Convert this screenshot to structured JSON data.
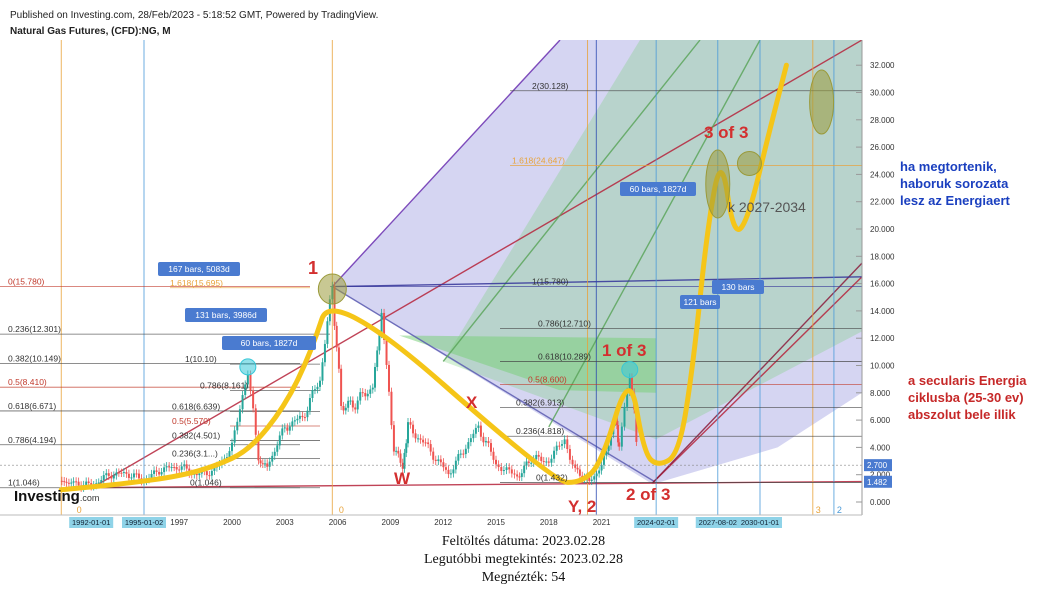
{
  "header": {
    "published": "Published on Investing.com, 28/Feb/2023 - 5:18:52 GMT, Powered by TradingView.",
    "symbol": "Natural Gas Futures, (CFD):NG, M"
  },
  "logo": {
    "text": "Investing",
    "suffix": ".com"
  },
  "footer": {
    "upload_date": "Feltöltés dátuma: 2023.02.28",
    "last_viewed": "Legutóbbi megtekintés: 2023.02.28",
    "views": "Megnézték: 54"
  },
  "notes": {
    "war": [
      "ha megtortenik,",
      "haboruk sorozata",
      "lesz az Energiaert"
    ],
    "secular": [
      "a secularis Energia",
      "ciklusba (25-30 ev)",
      "abszolut bele illik"
    ]
  },
  "colors": {
    "price_bull": "#26a69a",
    "price_bear": "#ef5350",
    "projection": "#f5c518",
    "wave_label": "#d32f2f",
    "note_blue": "#1a3fbf",
    "note_red": "#c62828",
    "pitchfork_blue": "#7b7bd6",
    "pitchfork_green": "#7ccf7c",
    "axis_badge": "#4a7bd0",
    "date_badge": "#8fd3e8"
  },
  "chart_data": {
    "type": "line",
    "title": "Natural Gas Futures, (CFD):NG, M",
    "y_axis": {
      "scale": "linear",
      "range": [
        -0.8,
        33.0
      ],
      "ticks": [
        "32.000",
        "30.000",
        "28.000",
        "26.000",
        "24.000",
        "22.000",
        "20.000",
        "18.000",
        "16.000",
        "14.000",
        "12.000",
        "10.000",
        "8.000",
        "6.000",
        "4.000",
        "2.000",
        "0.000"
      ],
      "tick_values": [
        32,
        30,
        28,
        26,
        24,
        22,
        20,
        18,
        16,
        14,
        12,
        10,
        8,
        6,
        4,
        2,
        0
      ],
      "badges": [
        {
          "value": 2.7,
          "text": "2.700"
        },
        {
          "value": 1.482,
          "text": "1.482"
        }
      ]
    },
    "x_axis": {
      "ticks": [
        "1997",
        "2000",
        "2003",
        "2006",
        "2009",
        "2012",
        "2015",
        "2018",
        "2021"
      ],
      "tick_values": [
        1997,
        2000,
        2003,
        2006,
        2009,
        2012,
        2015,
        2018,
        2021
      ],
      "date_badges": [
        {
          "x": 1992.0,
          "text": "1992-01-01"
        },
        {
          "x": 1995.0,
          "text": "1995-01-02"
        },
        {
          "x": 2024.1,
          "text": "2024-02-01"
        },
        {
          "x": 2027.6,
          "text": "2027-08-02"
        },
        {
          "x": 2030.0,
          "text": "2030-01-01"
        }
      ]
    },
    "series": [
      {
        "type": "price",
        "points": [
          [
            1990.2,
            1.5
          ],
          [
            1991.0,
            1.4
          ],
          [
            1992.0,
            1.2
          ],
          [
            1993.0,
            2.0
          ],
          [
            1994.0,
            2.1
          ],
          [
            1995.0,
            1.6
          ],
          [
            1996.0,
            2.4
          ],
          [
            1997.0,
            2.6
          ],
          [
            1998.0,
            2.0
          ],
          [
            1999.0,
            2.3
          ],
          [
            2000.0,
            4.0
          ],
          [
            2000.9,
            9.8
          ],
          [
            2001.5,
            3.0
          ],
          [
            2002.0,
            2.6
          ],
          [
            2003.0,
            5.5
          ],
          [
            2004.0,
            6.2
          ],
          [
            2005.0,
            9.0
          ],
          [
            2005.7,
            15.78
          ],
          [
            2006.2,
            7.0
          ],
          [
            2007.0,
            7.2
          ],
          [
            2008.0,
            8.5
          ],
          [
            2008.5,
            13.7
          ],
          [
            2009.2,
            4.0
          ],
          [
            2009.7,
            2.6
          ],
          [
            2010.0,
            5.5
          ],
          [
            2011.0,
            4.2
          ],
          [
            2012.3,
            2.0
          ],
          [
            2013.0,
            3.5
          ],
          [
            2014.0,
            5.5
          ],
          [
            2015.0,
            2.8
          ],
          [
            2016.2,
            1.8
          ],
          [
            2017.0,
            3.2
          ],
          [
            2018.0,
            3.0
          ],
          [
            2018.9,
            4.6
          ],
          [
            2019.5,
            2.3
          ],
          [
            2020.3,
            1.5
          ],
          [
            2021.0,
            2.6
          ],
          [
            2021.8,
            6.2
          ],
          [
            2022.0,
            4.0
          ],
          [
            2022.6,
            9.7
          ],
          [
            2023.1,
            2.7
          ]
        ]
      },
      {
        "name": "",
        "type": "projection",
        "points": [
          [
            1990.3,
            0.9
          ],
          [
            1994.0,
            1.35
          ],
          [
            1997.0,
            1.9
          ],
          [
            1999.0,
            2.6
          ],
          [
            2001.0,
            3.8
          ],
          [
            2003.0,
            7.0
          ],
          [
            2004.5,
            11.0
          ],
          [
            2005.7,
            15.78
          ],
          [
            2018.3,
            1.482
          ],
          [
            2019.8,
            1.4
          ],
          [
            2021.0,
            2.8
          ],
          [
            2022.6,
            9.8
          ],
          [
            2023.4,
            3.6
          ],
          [
            2024.2,
            2.6
          ],
          [
            2025.4,
            3.5
          ],
          [
            2026.2,
            10.0
          ],
          [
            2027.0,
            20.0
          ],
          [
            2027.8,
            25.6
          ],
          [
            2028.5,
            19.5
          ],
          [
            2029.3,
            20.6
          ],
          [
            2030.5,
            27.0
          ],
          [
            2031.5,
            32.0
          ]
        ]
      }
    ],
    "horizontal_levels": [
      {
        "label": "0(15.780)",
        "value": 15.78
      },
      {
        "label": "1.618(15.695)",
        "value": 15.695
      },
      {
        "label": "0.236(12.301)",
        "value": 12.301
      },
      {
        "label": "0.382(10.149)",
        "value": 10.149
      },
      {
        "label": "0.5(8.410)",
        "value": 8.41
      },
      {
        "label": "0.618(6.671)",
        "value": 6.671
      },
      {
        "label": "0.786(4.194)",
        "value": 4.194
      },
      {
        "label": "1(1.046)",
        "value": 1.046
      },
      {
        "label": "1(10.10)",
        "value": 10.1
      },
      {
        "label": "0.786(8.161)",
        "value": 8.161
      },
      {
        "label": "0.618(6.639)",
        "value": 6.639
      },
      {
        "label": "0.5(5.570)",
        "value": 5.57
      },
      {
        "label": "0.382(4.501)",
        "value": 4.501
      },
      {
        "label": "0.236(3.1...)",
        "value": 3.18
      },
      {
        "label": "0(1.046)",
        "value": 1.046
      },
      {
        "label": "2(30.128)",
        "value": 30.128
      },
      {
        "label": "1.618(24.647)",
        "value": 24.647
      },
      {
        "label": "1(15.780)",
        "value": 15.78
      },
      {
        "label": "0.786(12.710)",
        "value": 12.71
      },
      {
        "label": "0.618(10.289)",
        "value": 10.289
      },
      {
        "label": "0.5(8.600)",
        "value": 8.6
      },
      {
        "label": "0.382(6.913)",
        "value": 6.913
      },
      {
        "label": "0.236(4.818)",
        "value": 4.818
      },
      {
        "label": "0(1.432)",
        "value": 1.432
      }
    ],
    "bar_count_labels": [
      "167 bars, 5083d",
      "131 bars, 3986d",
      "60 bars, 1827d",
      "60 bars, 1827d",
      "130 bars",
      "121 bars"
    ],
    "wave_labels": [
      "1",
      "1 of 3",
      "2 of 3",
      "3 of 3",
      "X",
      "W",
      "Y, 2"
    ],
    "cycle_label": "k 2027-2034",
    "cycle_markers": [
      "0",
      "0",
      "3",
      "2"
    ]
  }
}
